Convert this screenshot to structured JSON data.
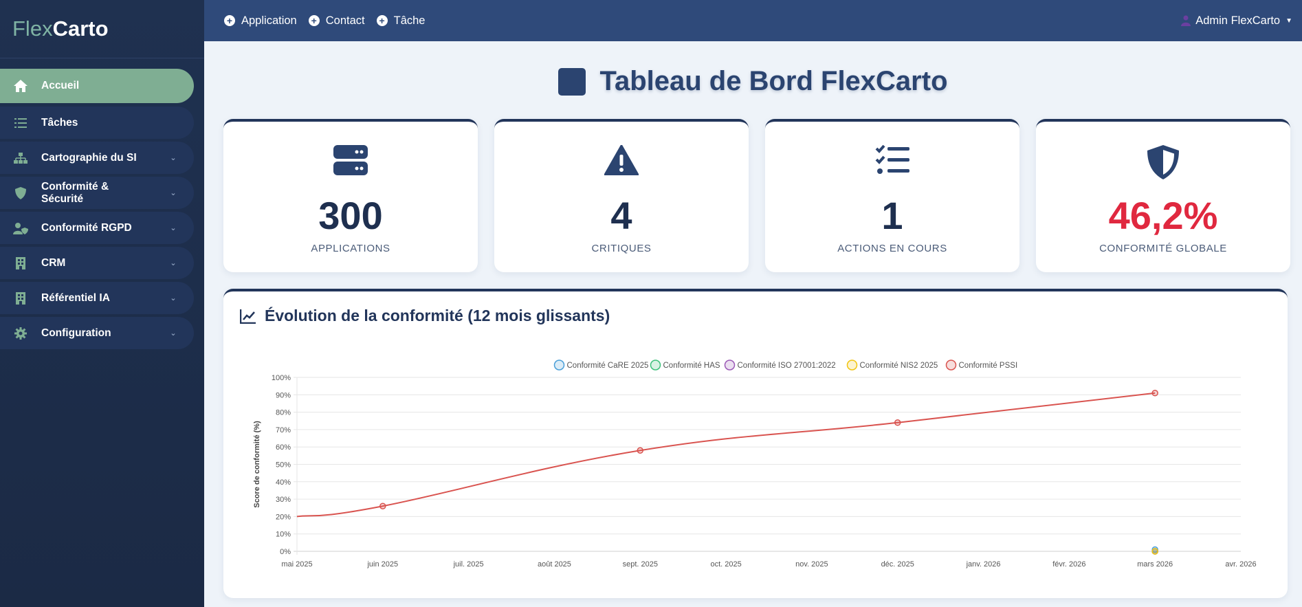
{
  "brand": {
    "part1": "Flex",
    "part2": "Carto"
  },
  "sidebar": {
    "items": [
      {
        "label": "Accueil",
        "icon": "home-icon",
        "active": true,
        "has_submenu": false
      },
      {
        "label": "Tâches",
        "icon": "list-check-icon",
        "active": false,
        "has_submenu": false
      },
      {
        "label": "Cartographie du SI",
        "icon": "sitemap-icon",
        "active": false,
        "has_submenu": true
      },
      {
        "label": "Conformité & Sécurité",
        "icon": "shield-icon",
        "active": false,
        "has_submenu": true
      },
      {
        "label": "Conformité RGPD",
        "icon": "user-shield-icon",
        "active": false,
        "has_submenu": true
      },
      {
        "label": "CRM",
        "icon": "building-icon",
        "active": false,
        "has_submenu": true
      },
      {
        "label": "Référentiel IA",
        "icon": "building-icon",
        "active": false,
        "has_submenu": true
      },
      {
        "label": "Configuration",
        "icon": "gear-icon",
        "active": false,
        "has_submenu": true
      }
    ]
  },
  "topbar": {
    "links": [
      "Application",
      "Contact",
      "Tâche"
    ],
    "user": "Admin FlexCarto"
  },
  "page": {
    "title": "Tableau de Bord FlexCarto"
  },
  "stats": [
    {
      "value": "300",
      "label": "APPLICATIONS",
      "icon": "server-icon"
    },
    {
      "value": "4",
      "label": "CRITIQUES",
      "icon": "warning-icon"
    },
    {
      "value": "1",
      "label": "ACTIONS EN COURS",
      "icon": "task-list-icon"
    },
    {
      "value": "46,2%",
      "label": "CONFORMITÉ GLOBALE",
      "icon": "shield-half-icon"
    }
  ],
  "colors": {
    "accent": "#7fae93",
    "primary": "#2b4470",
    "danger": "#e0283f"
  },
  "chart": {
    "title": "Évolution de la conformité (12 mois glissants)"
  },
  "chart_data": {
    "type": "line",
    "title": "",
    "ylabel": "Score de conformité (%)",
    "xlabel": "",
    "ylim": [
      0,
      100
    ],
    "yticks": [
      "0%",
      "10%",
      "20%",
      "30%",
      "40%",
      "50%",
      "60%",
      "70%",
      "80%",
      "90%",
      "100%"
    ],
    "categories": [
      "mai 2025",
      "juin 2025",
      "juil. 2025",
      "août 2025",
      "sept. 2025",
      "oct. 2025",
      "nov. 2025",
      "déc. 2025",
      "janv. 2026",
      "févr. 2026",
      "mars 2026",
      "avr. 2026"
    ],
    "legend_position": "top",
    "series": [
      {
        "name": "Conformité CaRE 2025",
        "color": "#4a9fd8",
        "points": [
          [
            10,
            1
          ]
        ]
      },
      {
        "name": "Conformité HAS",
        "color": "#3cc07a",
        "points": [
          [
            10,
            0
          ]
        ]
      },
      {
        "name": "Conformité ISO 27001:2022",
        "color": "#9b59b6",
        "points": [
          [
            10,
            0
          ]
        ]
      },
      {
        "name": "Conformité NIS2 2025",
        "color": "#f1c40f",
        "points": [
          [
            10,
            0
          ]
        ]
      },
      {
        "name": "Conformité PSSI",
        "color": "#d9534f",
        "points": [
          [
            0,
            20
          ],
          [
            1,
            26
          ],
          [
            4,
            58
          ],
          [
            7,
            74
          ],
          [
            10,
            91
          ]
        ]
      }
    ]
  }
}
